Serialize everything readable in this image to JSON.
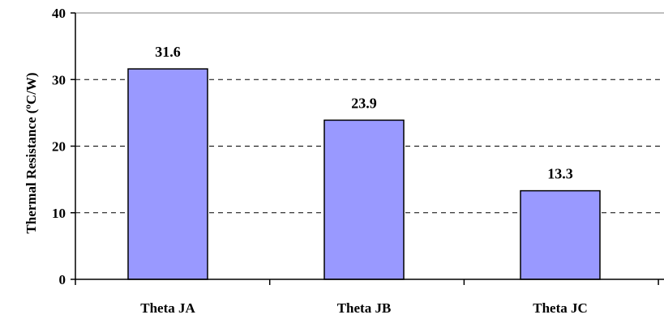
{
  "chart_data": {
    "type": "bar",
    "categories": [
      "Theta JA",
      "Theta JB",
      "Theta JC"
    ],
    "values": [
      31.6,
      23.9,
      13.3
    ],
    "data_labels": [
      "31.6",
      "23.9",
      "13.3"
    ],
    "title": "",
    "xlabel": "",
    "ylabel": "Thermal Resistance (ºC/W)",
    "ylim": [
      0,
      40
    ],
    "yticks": [
      0,
      10,
      20,
      30,
      40
    ],
    "ytick_labels": [
      "0",
      "10",
      "20",
      "30",
      "40"
    ],
    "grid": "dashed horizontal",
    "legend": "none",
    "bar_color": "#9999ff",
    "bar_edge_color": "#000000"
  }
}
